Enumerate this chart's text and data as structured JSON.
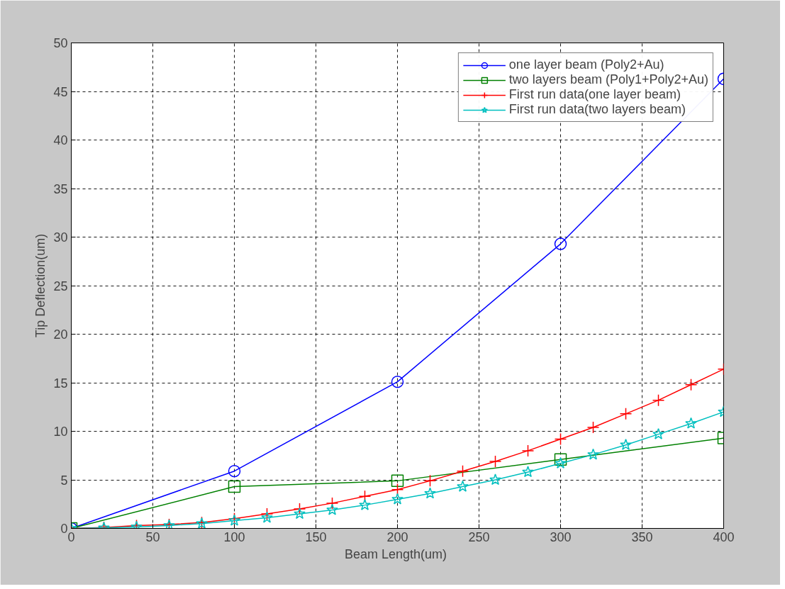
{
  "chart_data": {
    "type": "line",
    "xlabel": "Beam  Length(um)",
    "ylabel": "Tip Deflection(um)",
    "xlim": [
      0,
      400
    ],
    "ylim": [
      0,
      50
    ],
    "xticks": [
      0,
      50,
      100,
      150,
      200,
      250,
      300,
      350,
      400
    ],
    "yticks": [
      0,
      5,
      10,
      15,
      20,
      25,
      30,
      35,
      40,
      45,
      50
    ],
    "grid": true,
    "legend": "top right",
    "line_style": "solid",
    "series": [
      {
        "name": "one layer beam (Poly2+Au)",
        "color": "#0000ff",
        "marker": "circle",
        "x": [
          0,
          100,
          200,
          300,
          400
        ],
        "values": [
          0,
          5.9,
          15.1,
          29.3,
          46.3
        ]
      },
      {
        "name": "two layers beam (Poly1+Poly2+Au)",
        "color": "#008000",
        "marker": "square",
        "x": [
          0,
          100,
          200,
          300,
          400
        ],
        "values": [
          0,
          4.3,
          4.9,
          7.1,
          9.3
        ]
      },
      {
        "name": "First run data(one layer beam)",
        "color": "#ff0000",
        "marker": "cross",
        "x": [
          0,
          20,
          40,
          60,
          80,
          100,
          120,
          140,
          160,
          180,
          200,
          220,
          240,
          260,
          280,
          300,
          320,
          340,
          360,
          380,
          400
        ],
        "values": [
          0,
          0.1,
          0.3,
          0.4,
          0.6,
          1.0,
          1.5,
          2.0,
          2.6,
          3.3,
          4.0,
          4.9,
          5.9,
          6.9,
          8.0,
          9.2,
          10.4,
          11.8,
          13.2,
          14.8,
          16.4
        ]
      },
      {
        "name": "First run data(two layers beam)",
        "color": "#00bfbf",
        "marker": "star",
        "x": [
          0,
          20,
          40,
          60,
          80,
          100,
          120,
          140,
          160,
          180,
          200,
          220,
          240,
          260,
          280,
          300,
          320,
          340,
          360,
          380,
          400
        ],
        "values": [
          0,
          0.05,
          0.15,
          0.3,
          0.5,
          0.8,
          1.1,
          1.5,
          1.9,
          2.4,
          3.0,
          3.6,
          4.3,
          5.0,
          5.8,
          6.7,
          7.6,
          8.6,
          9.7,
          10.8,
          12.0
        ]
      }
    ]
  }
}
